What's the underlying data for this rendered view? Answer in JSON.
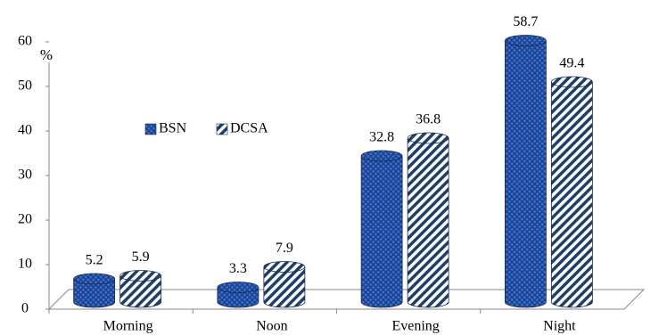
{
  "chart_data": {
    "type": "bar",
    "y_label": "%",
    "categories": [
      "Morning",
      "Noon",
      "Evening",
      "Night"
    ],
    "series": [
      {
        "name": "BSN",
        "color": "#3b6fd0",
        "values": [
          5.2,
          3.3,
          32.8,
          58.7
        ]
      },
      {
        "name": "DCSA",
        "color": "#1f3f6a",
        "values": [
          5.9,
          7.9,
          36.8,
          49.4
        ]
      }
    ],
    "ylim": [
      0,
      60
    ],
    "yticks": [
      0,
      10,
      20,
      30,
      40,
      50,
      60
    ],
    "grid": false,
    "legend": "upper-left"
  }
}
